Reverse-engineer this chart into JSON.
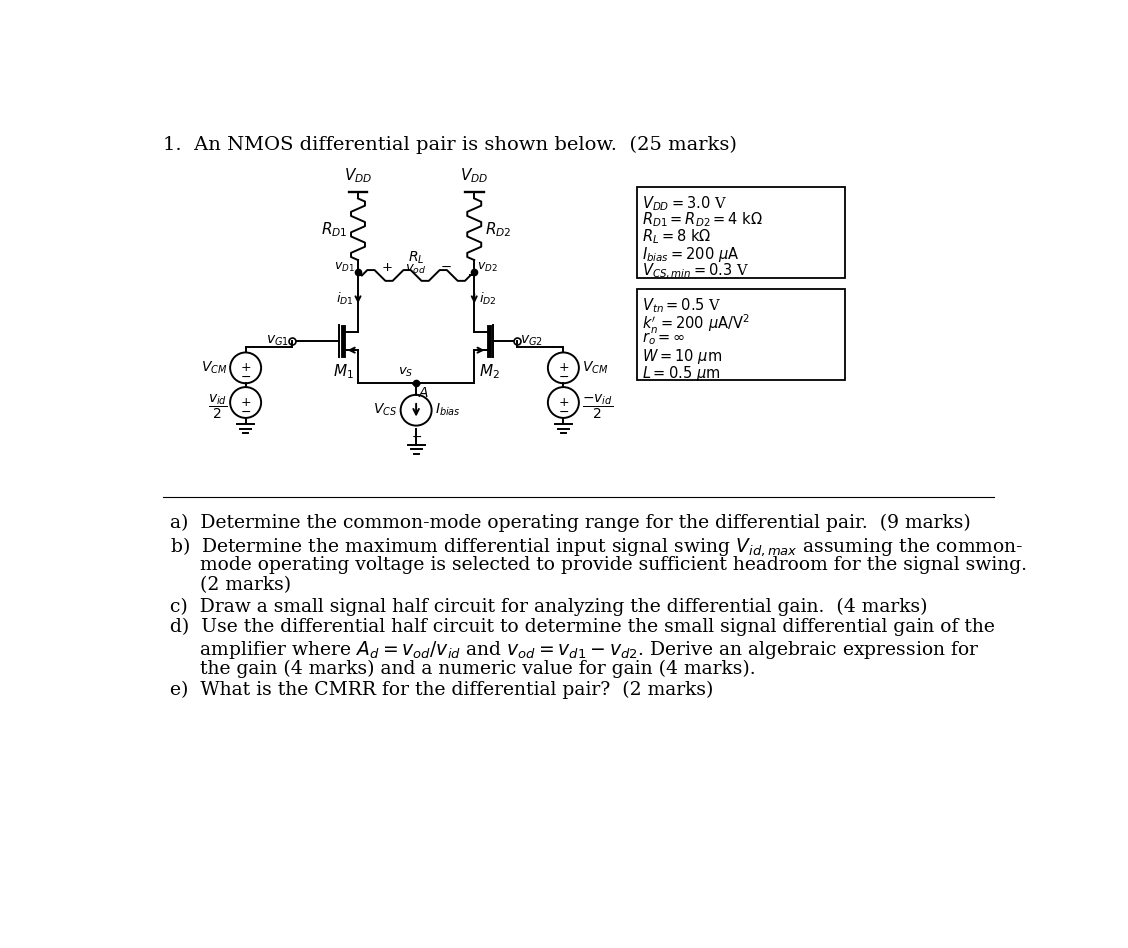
{
  "bg_color": "#ffffff",
  "title": "1.  An NMOS differential pair is shown below.  (25 marks)",
  "box1_lines": [
    "$V_{DD} = 3.0$ V",
    "$R_{D1} = R_{D2} = 4\\ \\mathrm{k}\\Omega$",
    "$R_L = 8\\ \\mathrm{k}\\Omega$",
    "$I_{bias} = 200\\ \\mu\\mathrm{A}$",
    "$V_{CS,min} = 0.3$ V"
  ],
  "box2_lines": [
    "$V_{tn} = 0.5$ V",
    "$k_n^\\prime = 200\\ \\mu\\mathrm{A/V}^2$",
    "$r_o = \\infty$",
    "$W = 10\\ \\mu\\mathrm{m}$",
    "$L = 0.5\\ \\mu\\mathrm{m}$"
  ],
  "q_lines": [
    [
      "a)",
      "  Determine the common-mode operating range for the differential pair.  (9 marks)"
    ],
    [
      "b)",
      "  Determine the maximum differential input signal swing $V_{id,max}$ assuming the common-"
    ],
    [
      "",
      "     mode operating voltage is selected to provide sufficient headroom for the signal swing."
    ],
    [
      "",
      "     (2 marks)"
    ],
    [
      "c)",
      "  Draw a small signal half circuit for analyzing the differential gain.  (4 marks)"
    ],
    [
      "d)",
      "  Use the differential half circuit to determine the small signal differential gain of the"
    ],
    [
      "",
      "     amplifier where $A_d = v_{od}/v_{id}$ and $v_{od} = v_{d1} - v_{d2}$. Derive an algebraic expression for"
    ],
    [
      "",
      "     the gain (4 marks) and a numeric value for gain (4 marks)."
    ],
    [
      "e)",
      "  What is the CMRR for the differential pair?  (2 marks)"
    ]
  ]
}
